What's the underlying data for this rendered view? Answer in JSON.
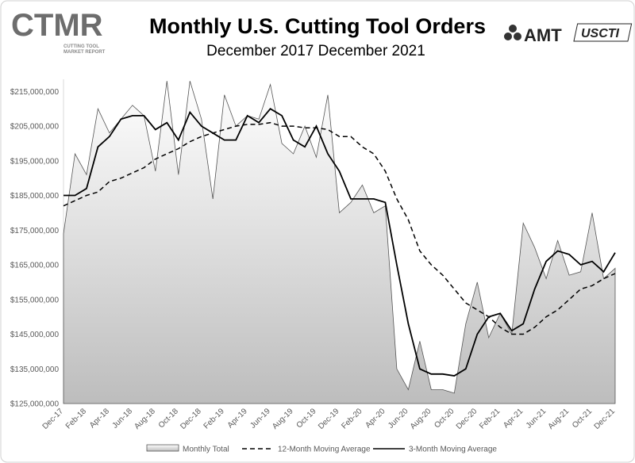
{
  "chart_data": {
    "type": "line",
    "title": "Monthly U.S. Cutting Tool Orders",
    "subtitle": "December 2017 December 2021",
    "annotations": [
      "CTMR",
      "CUTTING TOOL",
      "MARKET REPORT",
      "AMT",
      "USCTI"
    ],
    "categories": [
      "Dec-17",
      null,
      "Feb-18",
      null,
      "Apr-18",
      null,
      "Jun-18",
      null,
      "Aug-18",
      null,
      "Oct-18",
      null,
      "Dec-18",
      null,
      "Feb-19",
      null,
      "Apr-19",
      null,
      "Jun-19",
      null,
      "Aug-19",
      null,
      "Oct-19",
      null,
      "Dec-19",
      null,
      "Feb-20",
      null,
      "Apr-20",
      null,
      "Jun-20",
      null,
      "Aug-20",
      null,
      "Oct-20",
      null,
      "Dec-20",
      null,
      "Feb-21",
      null,
      "Apr-21",
      null,
      "Jun-21",
      null,
      "Aug-21",
      null,
      "Oct-21",
      null,
      "Dec-21"
    ],
    "series": [
      {
        "name": "Monthly Total",
        "style": "area",
        "color": "#555555",
        "values": [
          174000000,
          197000000,
          191000000,
          210000000,
          203000000,
          207000000,
          211000000,
          208000000,
          192000000,
          218000000,
          191000000,
          218000000,
          207000000,
          184000000,
          214000000,
          205000000,
          208000000,
          207000000,
          217000000,
          200000000,
          197000000,
          205000000,
          196000000,
          214000000,
          180000000,
          183000000,
          188000000,
          180000000,
          182000000,
          135000000,
          129000000,
          143000000,
          129000000,
          129000000,
          128000000,
          148000000,
          160000000,
          144000000,
          151000000,
          145000000,
          177000000,
          170000000,
          161000000,
          172000000,
          162000000,
          163000000,
          180000000,
          161000000,
          164000000
        ]
      },
      {
        "name": "12-Month Moving Average",
        "style": "dashed",
        "color": "#000000",
        "values": [
          182000000,
          183500000,
          185000000,
          186000000,
          189000000,
          190000000,
          191500000,
          193000000,
          195500000,
          197000000,
          198500000,
          200500000,
          202000000,
          203000000,
          204000000,
          205000000,
          205500000,
          205500000,
          206000000,
          205000000,
          205000000,
          204500000,
          204500000,
          204000000,
          202000000,
          202000000,
          199000000,
          197000000,
          192000000,
          184000000,
          178000000,
          169000000,
          165000000,
          162000000,
          158000000,
          154000000,
          152000000,
          150000000,
          147000000,
          145000000,
          145000000,
          147000000,
          150000000,
          152000000,
          155000000,
          158000000,
          159000000,
          161000000,
          162500000
        ]
      },
      {
        "name": "3-Month Moving Average",
        "style": "solid",
        "color": "#000000",
        "values": [
          185000000,
          185000000,
          187000000,
          199000000,
          202000000,
          207000000,
          208000000,
          208000000,
          204000000,
          206000000,
          201000000,
          209000000,
          205000000,
          203000000,
          201000000,
          201000000,
          208000000,
          206000000,
          210000000,
          208000000,
          201000000,
          199000000,
          205000000,
          197000000,
          192000000,
          184000000,
          184000000,
          184000000,
          183000000,
          165000000,
          148000000,
          135000000,
          133500000,
          133500000,
          133000000,
          135000000,
          145000000,
          150000000,
          151000000,
          146000000,
          148000000,
          158000000,
          166000000,
          169000000,
          168000000,
          165000000,
          166000000,
          163000000,
          168500000
        ]
      }
    ],
    "ylim": [
      125000000,
      218500000
    ],
    "yticks": [
      {
        "value": 125000000,
        "label": "$125,000,000"
      },
      {
        "value": 135000000,
        "label": "$135,000,000"
      },
      {
        "value": 145000000,
        "label": "$145,000,000"
      },
      {
        "value": 155000000,
        "label": "$155,000,000"
      },
      {
        "value": 165000000,
        "label": "$165,000,000"
      },
      {
        "value": 175000000,
        "label": "$175,000,000"
      },
      {
        "value": 185000000,
        "label": "$185,000,000"
      },
      {
        "value": 195000000,
        "label": "$195,000,000"
      },
      {
        "value": 205000000,
        "label": "$205,000,000"
      },
      {
        "value": 215000000,
        "label": "$215,000,000"
      }
    ],
    "grid": false,
    "legend": "bottom"
  }
}
